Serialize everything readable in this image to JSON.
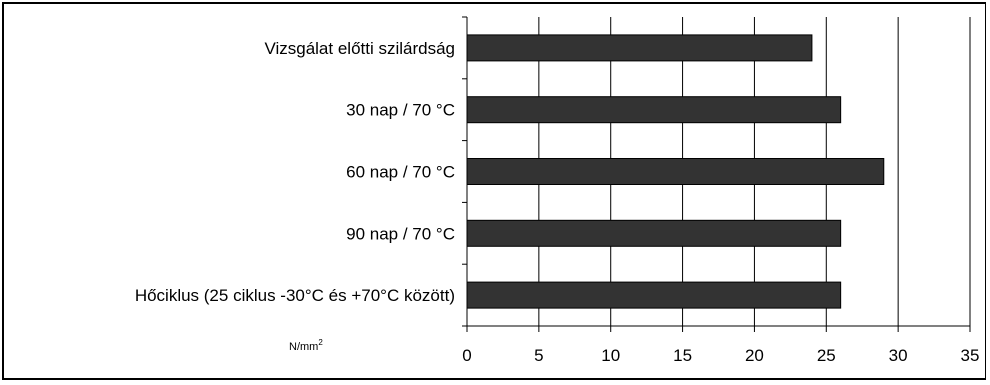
{
  "chart_data": {
    "type": "bar",
    "orientation": "horizontal",
    "categories": [
      "Vizsgálat előtti szilárdság",
      "30 nap / 70 °C",
      "60 nap / 70 °C",
      "90 nap / 70 °C",
      "Hőciklus (25 ciklus -30°C és +70°C között)"
    ],
    "values": [
      24,
      26,
      29,
      26,
      26
    ],
    "xlabel": "N/mm",
    "xlabel_superscript": "2",
    "xlim": [
      0,
      35
    ],
    "xticks": [
      "0",
      "5",
      "10",
      "15",
      "20",
      "25",
      "30",
      "35"
    ],
    "grid": "vertical",
    "bar_color": "#333333",
    "legend": "none"
  }
}
